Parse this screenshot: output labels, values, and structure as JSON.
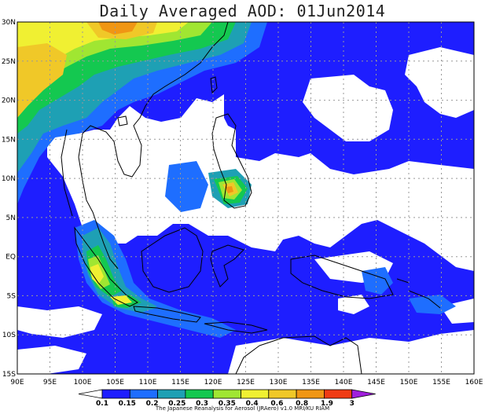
{
  "title": "Daily Averaged AOD: 01Jun2014",
  "credit": "The Japanese Reanalysis for Aerosol (JRAero) v1.0 MRI/KU RIAM",
  "map": {
    "lon_labels": [
      "90E",
      "95E",
      "100E",
      "105E",
      "110E",
      "115E",
      "120E",
      "125E",
      "130E",
      "135E",
      "140E",
      "145E",
      "150E",
      "155E",
      "160E"
    ],
    "lat_labels": [
      "30N",
      "25N",
      "20N",
      "15N",
      "10N",
      "5N",
      "EQ",
      "5S",
      "10S",
      "15S"
    ],
    "lon_range": [
      90,
      160
    ],
    "lat_range": [
      -15,
      30
    ],
    "grid": "dotted"
  },
  "colorbar": {
    "labels": [
      "0.1",
      "0.15",
      "0.2",
      "0.25",
      "0.3",
      "0.35",
      "0.4",
      "0.6",
      "0.8",
      "1.9",
      "3"
    ],
    "colors": [
      "#ffffff",
      "#1e1eff",
      "#1e6eff",
      "#1ea0b4",
      "#14c850",
      "#a0e632",
      "#f0f032",
      "#f0c828",
      "#f09614",
      "#f03c14",
      "#a01edc"
    ]
  }
}
